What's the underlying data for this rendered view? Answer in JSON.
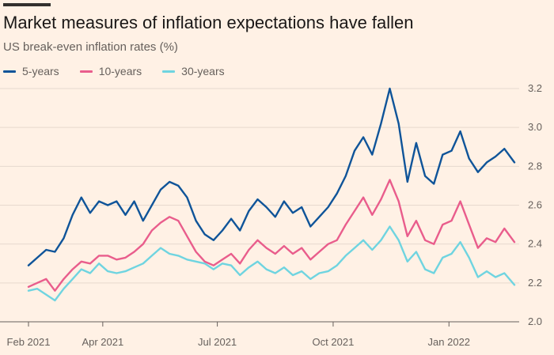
{
  "chart_data": {
    "type": "line",
    "title": "Market measures of inflation expectations have fallen",
    "subtitle": "US break-even inflation rates (%)",
    "xlabel": "",
    "ylabel": "",
    "x_ticks": [
      "Feb 2021",
      "Apr 2021",
      "Jul 2021",
      "Oct 2021",
      "Jan 2022"
    ],
    "y_ticks": [
      "2.0",
      "2.2",
      "2.4",
      "2.6",
      "2.8",
      "3.0",
      "3.2"
    ],
    "ylim": [
      2.0,
      3.2
    ],
    "xlim": [
      "2021-02-01",
      "2022-02-22"
    ],
    "y_axis_position": "right",
    "grid": "horizontal",
    "legend_position": "top-left",
    "series": [
      {
        "name": "5-years",
        "color": "#0f5499",
        "points": [
          [
            "2021-02-01",
            2.29
          ],
          [
            "2021-02-08",
            2.33
          ],
          [
            "2021-02-15",
            2.37
          ],
          [
            "2021-02-22",
            2.36
          ],
          [
            "2021-03-01",
            2.43
          ],
          [
            "2021-03-08",
            2.55
          ],
          [
            "2021-03-15",
            2.64
          ],
          [
            "2021-03-22",
            2.56
          ],
          [
            "2021-03-29",
            2.62
          ],
          [
            "2021-04-05",
            2.6
          ],
          [
            "2021-04-12",
            2.62
          ],
          [
            "2021-04-19",
            2.55
          ],
          [
            "2021-04-26",
            2.62
          ],
          [
            "2021-05-03",
            2.52
          ],
          [
            "2021-05-10",
            2.6
          ],
          [
            "2021-05-17",
            2.68
          ],
          [
            "2021-05-24",
            2.72
          ],
          [
            "2021-05-31",
            2.7
          ],
          [
            "2021-06-07",
            2.64
          ],
          [
            "2021-06-14",
            2.52
          ],
          [
            "2021-06-21",
            2.45
          ],
          [
            "2021-06-28",
            2.42
          ],
          [
            "2021-07-05",
            2.47
          ],
          [
            "2021-07-12",
            2.53
          ],
          [
            "2021-07-19",
            2.47
          ],
          [
            "2021-07-26",
            2.57
          ],
          [
            "2021-08-02",
            2.63
          ],
          [
            "2021-08-09",
            2.59
          ],
          [
            "2021-08-16",
            2.54
          ],
          [
            "2021-08-23",
            2.62
          ],
          [
            "2021-08-30",
            2.56
          ],
          [
            "2021-09-06",
            2.59
          ],
          [
            "2021-09-13",
            2.49
          ],
          [
            "2021-09-20",
            2.54
          ],
          [
            "2021-09-27",
            2.59
          ],
          [
            "2021-10-04",
            2.66
          ],
          [
            "2021-10-11",
            2.75
          ],
          [
            "2021-10-18",
            2.88
          ],
          [
            "2021-10-25",
            2.95
          ],
          [
            "2021-11-01",
            2.86
          ],
          [
            "2021-11-08",
            3.02
          ],
          [
            "2021-11-15",
            3.2
          ],
          [
            "2021-11-22",
            3.02
          ],
          [
            "2021-11-29",
            2.72
          ],
          [
            "2021-12-06",
            2.92
          ],
          [
            "2021-12-13",
            2.75
          ],
          [
            "2021-12-20",
            2.71
          ],
          [
            "2021-12-27",
            2.86
          ],
          [
            "2022-01-03",
            2.88
          ],
          [
            "2022-01-10",
            2.98
          ],
          [
            "2022-01-17",
            2.84
          ],
          [
            "2022-01-24",
            2.77
          ],
          [
            "2022-01-31",
            2.82
          ],
          [
            "2022-02-07",
            2.85
          ],
          [
            "2022-02-14",
            2.89
          ],
          [
            "2022-02-22",
            2.82
          ]
        ]
      },
      {
        "name": "10-years",
        "color": "#e95d8c",
        "points": [
          [
            "2021-02-01",
            2.18
          ],
          [
            "2021-02-08",
            2.2
          ],
          [
            "2021-02-15",
            2.22
          ],
          [
            "2021-02-22",
            2.16
          ],
          [
            "2021-03-01",
            2.22
          ],
          [
            "2021-03-08",
            2.27
          ],
          [
            "2021-03-15",
            2.31
          ],
          [
            "2021-03-22",
            2.3
          ],
          [
            "2021-03-29",
            2.34
          ],
          [
            "2021-04-05",
            2.34
          ],
          [
            "2021-04-12",
            2.32
          ],
          [
            "2021-04-19",
            2.33
          ],
          [
            "2021-04-26",
            2.36
          ],
          [
            "2021-05-03",
            2.4
          ],
          [
            "2021-05-10",
            2.47
          ],
          [
            "2021-05-17",
            2.51
          ],
          [
            "2021-05-24",
            2.54
          ],
          [
            "2021-05-31",
            2.52
          ],
          [
            "2021-06-07",
            2.44
          ],
          [
            "2021-06-14",
            2.36
          ],
          [
            "2021-06-21",
            2.31
          ],
          [
            "2021-06-28",
            2.29
          ],
          [
            "2021-07-05",
            2.32
          ],
          [
            "2021-07-12",
            2.35
          ],
          [
            "2021-07-19",
            2.3
          ],
          [
            "2021-07-26",
            2.37
          ],
          [
            "2021-08-02",
            2.42
          ],
          [
            "2021-08-09",
            2.38
          ],
          [
            "2021-08-16",
            2.35
          ],
          [
            "2021-08-23",
            2.39
          ],
          [
            "2021-08-30",
            2.35
          ],
          [
            "2021-09-06",
            2.38
          ],
          [
            "2021-09-13",
            2.32
          ],
          [
            "2021-09-20",
            2.36
          ],
          [
            "2021-09-27",
            2.4
          ],
          [
            "2021-10-04",
            2.42
          ],
          [
            "2021-10-11",
            2.5
          ],
          [
            "2021-10-18",
            2.57
          ],
          [
            "2021-10-25",
            2.64
          ],
          [
            "2021-11-01",
            2.55
          ],
          [
            "2021-11-08",
            2.63
          ],
          [
            "2021-11-15",
            2.73
          ],
          [
            "2021-11-22",
            2.62
          ],
          [
            "2021-11-29",
            2.44
          ],
          [
            "2021-12-06",
            2.52
          ],
          [
            "2021-12-13",
            2.42
          ],
          [
            "2021-12-20",
            2.4
          ],
          [
            "2021-12-27",
            2.5
          ],
          [
            "2022-01-03",
            2.52
          ],
          [
            "2022-01-10",
            2.62
          ],
          [
            "2022-01-17",
            2.5
          ],
          [
            "2022-01-24",
            2.38
          ],
          [
            "2022-01-31",
            2.43
          ],
          [
            "2022-02-07",
            2.41
          ],
          [
            "2022-02-14",
            2.48
          ],
          [
            "2022-02-22",
            2.41
          ]
        ]
      },
      {
        "name": "30-years",
        "color": "#6fd4e0",
        "points": [
          [
            "2021-02-01",
            2.16
          ],
          [
            "2021-02-08",
            2.17
          ],
          [
            "2021-02-15",
            2.14
          ],
          [
            "2021-02-22",
            2.11
          ],
          [
            "2021-03-01",
            2.17
          ],
          [
            "2021-03-08",
            2.22
          ],
          [
            "2021-03-15",
            2.27
          ],
          [
            "2021-03-22",
            2.25
          ],
          [
            "2021-03-29",
            2.3
          ],
          [
            "2021-04-05",
            2.26
          ],
          [
            "2021-04-12",
            2.25
          ],
          [
            "2021-04-19",
            2.26
          ],
          [
            "2021-04-26",
            2.28
          ],
          [
            "2021-05-03",
            2.3
          ],
          [
            "2021-05-10",
            2.34
          ],
          [
            "2021-05-17",
            2.38
          ],
          [
            "2021-05-24",
            2.35
          ],
          [
            "2021-05-31",
            2.34
          ],
          [
            "2021-06-07",
            2.32
          ],
          [
            "2021-06-14",
            2.31
          ],
          [
            "2021-06-21",
            2.3
          ],
          [
            "2021-06-28",
            2.27
          ],
          [
            "2021-07-05",
            2.3
          ],
          [
            "2021-07-12",
            2.29
          ],
          [
            "2021-07-19",
            2.24
          ],
          [
            "2021-07-26",
            2.28
          ],
          [
            "2021-08-02",
            2.31
          ],
          [
            "2021-08-09",
            2.27
          ],
          [
            "2021-08-16",
            2.25
          ],
          [
            "2021-08-23",
            2.28
          ],
          [
            "2021-08-30",
            2.24
          ],
          [
            "2021-09-06",
            2.26
          ],
          [
            "2021-09-13",
            2.22
          ],
          [
            "2021-09-20",
            2.25
          ],
          [
            "2021-09-27",
            2.26
          ],
          [
            "2021-10-04",
            2.29
          ],
          [
            "2021-10-11",
            2.34
          ],
          [
            "2021-10-18",
            2.38
          ],
          [
            "2021-10-25",
            2.42
          ],
          [
            "2021-11-01",
            2.37
          ],
          [
            "2021-11-08",
            2.42
          ],
          [
            "2021-11-15",
            2.49
          ],
          [
            "2021-11-22",
            2.42
          ],
          [
            "2021-11-29",
            2.31
          ],
          [
            "2021-12-06",
            2.36
          ],
          [
            "2021-12-13",
            2.27
          ],
          [
            "2021-12-20",
            2.25
          ],
          [
            "2021-12-27",
            2.33
          ],
          [
            "2022-01-03",
            2.35
          ],
          [
            "2022-01-10",
            2.41
          ],
          [
            "2022-01-17",
            2.33
          ],
          [
            "2022-01-24",
            2.23
          ],
          [
            "2022-01-31",
            2.26
          ],
          [
            "2022-02-07",
            2.23
          ],
          [
            "2022-02-14",
            2.25
          ],
          [
            "2022-02-22",
            2.19
          ]
        ]
      }
    ]
  }
}
